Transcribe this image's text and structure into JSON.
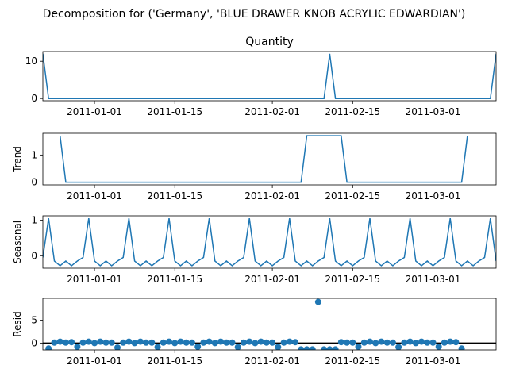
{
  "suptitle": "Decomposition for ('Germany', 'BLUE DRAWER KNOB ACRYLIC EDWARDIAN')",
  "line_color": "#1f77b4",
  "chart_data": [
    {
      "type": "line",
      "title": "Quantity",
      "ylabel": "",
      "ylim": [
        -0.6,
        12.6
      ],
      "yticks": [
        0,
        10
      ],
      "series": [
        {
          "x": [
            "2010-12-23",
            "2010-12-24",
            "2011-02-10",
            "2011-02-11",
            "2011-02-12",
            "2011-03-11",
            "2011-03-12"
          ],
          "values": [
            12,
            0,
            0,
            12,
            0,
            0,
            12
          ]
        }
      ]
    },
    {
      "type": "line",
      "title": "",
      "ylabel": "Trend",
      "ylim": [
        -0.1,
        1.8
      ],
      "yticks": [
        0,
        1
      ],
      "series": [
        {
          "x": [
            "2010-12-26",
            "2010-12-27",
            "2011-02-06",
            "2011-02-07",
            "2011-02-13",
            "2011-02-14",
            "2011-03-06",
            "2011-03-07"
          ],
          "values": [
            1.71,
            0,
            0,
            1.71,
            1.71,
            0,
            0,
            1.71
          ]
        }
      ]
    },
    {
      "type": "line",
      "title": "",
      "ylabel": "Seasonal",
      "ylim": [
        -0.35,
        1.12
      ],
      "yticks": [
        0,
        1
      ],
      "period_start": "2010-12-23",
      "period_end": "2011-03-12",
      "pattern": [
        -0.05,
        1.05,
        -0.15,
        -0.28,
        -0.15,
        -0.28,
        -0.15
      ]
    },
    {
      "type": "scatter",
      "title": "",
      "ylabel": "Resid",
      "ylim": [
        -1.5,
        9.8
      ],
      "yticks": [
        0,
        5
      ],
      "baseline": 0,
      "series": [
        {
          "start": "2010-12-24",
          "values": [
            -1.2,
            0.1,
            0.3,
            0.1,
            0.2,
            -0.8,
            0.1,
            0.3,
            0.0,
            0.3,
            0.1,
            0.1,
            -1.0,
            0.1,
            0.3,
            0.0,
            0.3,
            0.1,
            0.1,
            -0.9,
            0.1,
            0.3,
            0.0,
            0.3,
            0.1,
            0.1,
            -0.8,
            0.1,
            0.3,
            0.0,
            0.3,
            0.1,
            0.1,
            -0.9,
            0.1,
            0.3,
            0.0,
            0.3,
            0.1,
            0.1,
            -0.9,
            0.1,
            0.3,
            0.2,
            -1.4,
            -1.4,
            -1.4,
            9.0,
            -1.4,
            -1.4,
            -1.4,
            0.2,
            0.1,
            0.1,
            -0.8,
            0.1,
            0.3,
            0.0,
            0.3,
            0.1,
            0.1,
            -0.9,
            0.1,
            0.3,
            0.0,
            0.3,
            0.1,
            0.1,
            -0.8,
            0.1,
            0.3,
            0.2,
            -1.2
          ]
        }
      ]
    }
  ],
  "x_axis": {
    "start": "2010-12-23",
    "end": "2011-03-12",
    "ticks": [
      "2011-01-01",
      "2011-01-15",
      "2011-02-01",
      "2011-02-15",
      "2011-03-01"
    ]
  }
}
